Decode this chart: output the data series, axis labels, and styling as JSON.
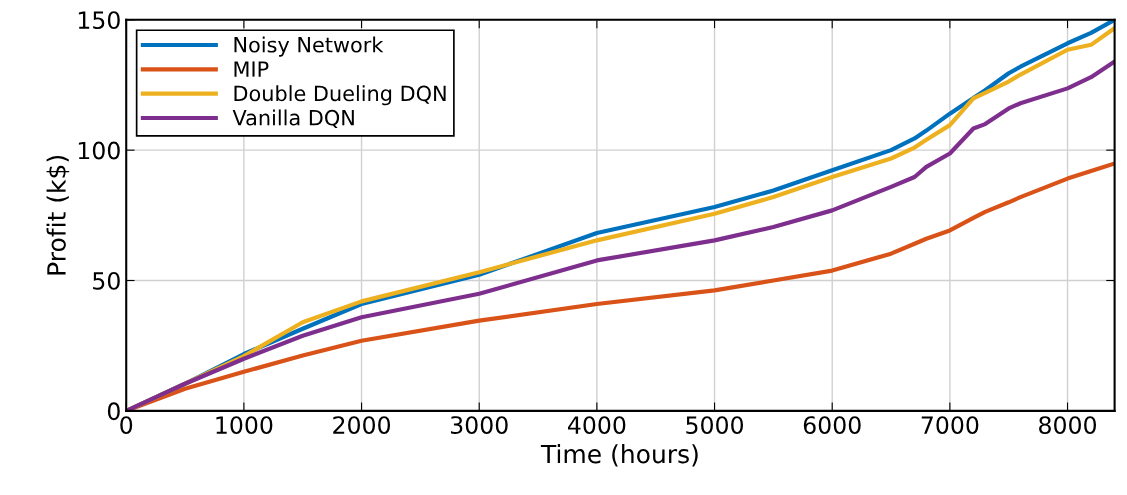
{
  "chart_data": {
    "type": "line",
    "xlabel": "Time (hours)",
    "ylabel": "Profit (k$)",
    "xlim": [
      0,
      8400
    ],
    "xticks": [
      0,
      1000,
      2000,
      3000,
      4000,
      5000,
      6000,
      7000,
      8000
    ],
    "ylim": [
      0,
      150
    ],
    "yticks": [
      0,
      50,
      100,
      150
    ],
    "grid": true,
    "legend": "top left",
    "x": [
      0,
      500,
      1000,
      1500,
      2000,
      3000,
      4000,
      5000,
      5500,
      6000,
      6500,
      6700,
      6800,
      7000,
      7200,
      7300,
      7500,
      7600,
      8000,
      8200,
      8400
    ],
    "series": [
      {
        "name": "Noisy Network",
        "color": "#0072bd",
        "values": [
          0,
          10.4,
          21.8,
          31.5,
          41,
          52.2,
          68.2,
          78.2,
          84.5,
          92.3,
          100,
          104.5,
          107.5,
          114,
          120,
          123,
          129.5,
          132,
          141,
          145,
          150
        ]
      },
      {
        "name": "MIP",
        "color": "#d95319",
        "values": [
          0,
          8.5,
          15,
          21.2,
          26.9,
          34.6,
          41,
          46.2,
          50,
          53.8,
          60.3,
          64.1,
          66,
          69.2,
          74,
          76.3,
          80,
          82,
          89.1,
          92,
          94.9
        ]
      },
      {
        "name": "Double Dueling DQN",
        "color": "#edb120",
        "values": [
          0,
          10.4,
          21,
          34,
          42,
          53.2,
          65.4,
          75.6,
          82,
          89.7,
          96.8,
          101,
          104,
          109.6,
          119.9,
          122,
          126.3,
          129,
          138.5,
          140.4,
          146.8
        ]
      },
      {
        "name": "Vanilla DQN",
        "color": "#7e2f8e",
        "values": [
          0,
          10.4,
          20,
          28.8,
          35.9,
          44.9,
          57.7,
          65.4,
          70.5,
          76.9,
          85.9,
          89.7,
          93.6,
          98.7,
          108.3,
          110,
          116,
          118,
          123.7,
          128,
          134
        ]
      }
    ]
  }
}
